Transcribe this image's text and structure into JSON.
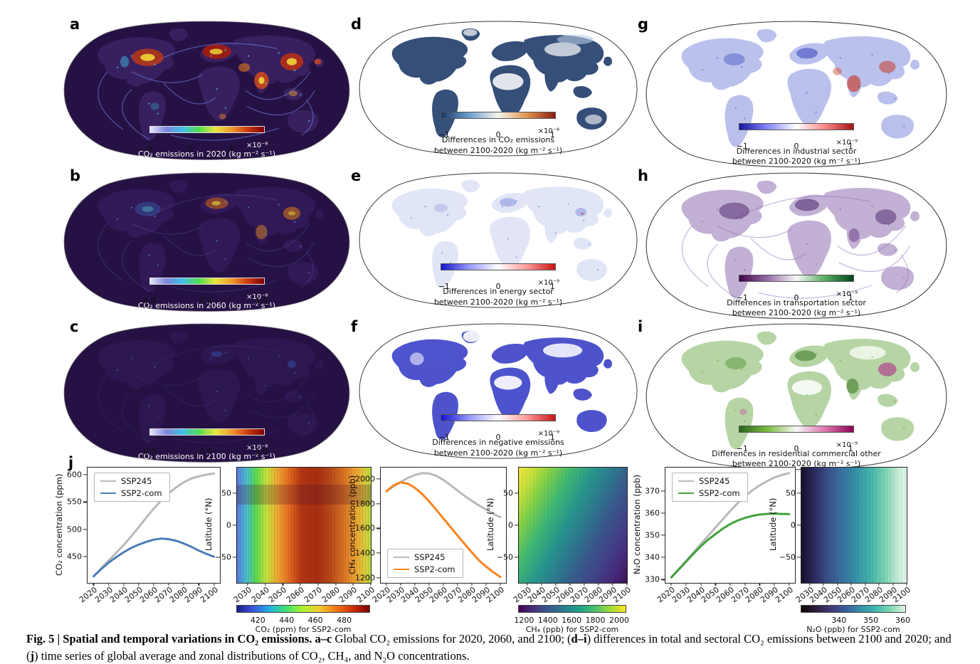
{
  "maps": [
    {
      "letter": "a",
      "label_lines": [
        "CO₂ emissions in 2020 (kg m⁻² s⁻¹)"
      ],
      "cbar": {
        "exp": "×10⁻⁸",
        "colors": [
          "#e6e6fa",
          "#7b86dc",
          "#40c0e8",
          "#52de50",
          "#e6e63c",
          "#f0992e",
          "#cc3a10",
          "#800000"
        ],
        "axis": {
          "xlim": [
            0,
            5.6
          ],
          "xticks": [
            {
              "v": 0,
              "t": "0"
            },
            {
              "v": 2,
              "t": "2"
            },
            {
              "v": 4,
              "t": "4"
            }
          ],
          "xrot": false
        }
      }
    },
    {
      "letter": "b",
      "label_lines": [
        "CO₂ emissions in 2060 (kg m⁻² s⁻¹)"
      ],
      "cbar": {
        "exp": "×10⁻⁸",
        "colors": [
          "#e6e6fa",
          "#7b86dc",
          "#40c0e8",
          "#52de50",
          "#e6e63c",
          "#f0992e",
          "#cc3a10",
          "#800000"
        ],
        "axis": {
          "xlim": [
            0,
            1.02
          ],
          "xticks": [
            {
              "v": 0,
              "t": "0.0"
            },
            {
              "v": 0.5,
              "t": "0.5"
            },
            {
              "v": 1,
              "t": "1.0"
            }
          ],
          "xrot": false
        }
      }
    },
    {
      "letter": "c",
      "label_lines": [
        "CO₂ emissions in 2100 (kg m⁻² s⁻¹)"
      ],
      "cbar": {
        "exp": "×10⁻⁸",
        "colors": [
          "#e6e6fa",
          "#7b86dc",
          "#40c0e8",
          "#52de50",
          "#e6e63c",
          "#f0992e",
          "#cc3a10",
          "#800000"
        ],
        "axis": {
          "xlim": [
            0,
            1.02
          ],
          "xticks": [
            {
              "v": 0,
              "t": "0.0"
            },
            {
              "v": 0.5,
              "t": "0.5"
            },
            {
              "v": 1,
              "t": "1.0"
            }
          ],
          "xrot": false
        }
      }
    },
    {
      "letter": "d",
      "label_lines": [
        "Differences in CO₂ emissions",
        "between 2100-2020 (kg m⁻² s⁻¹)"
      ],
      "cbar": {
        "exp": "×10⁻⁸",
        "colors": [
          "#173766",
          "#6ea3cf",
          "#f7f4ef",
          "#e0964e",
          "#8c1a10"
        ],
        "axis": {
          "xlim": [
            -1.05,
            1.05
          ],
          "xticks": [
            {
              "v": -1,
              "t": "−1"
            },
            {
              "v": 0,
              "t": "0"
            },
            {
              "v": 1,
              "t": "1"
            }
          ],
          "xrot": false
        }
      }
    },
    {
      "letter": "e",
      "label_lines": [
        "Differences in energy sector",
        "between 2100-2020 (kg m⁻² s⁻¹)"
      ],
      "cbar": {
        "exp": "×10⁻⁹",
        "colors": [
          "#1414c8",
          "#9a9aff",
          "#ffffff",
          "#ff9a9a",
          "#c81414"
        ],
        "axis": {
          "xlim": [
            -1.05,
            1.05
          ],
          "xticks": [
            {
              "v": -1,
              "t": "−1"
            },
            {
              "v": 0,
              "t": "0"
            },
            {
              "v": 1,
              "t": "1"
            }
          ],
          "xrot": false
        }
      }
    },
    {
      "letter": "f",
      "label_lines": [
        "Differences in negative emissions",
        "between 2100-2020 (kg m⁻² s⁻¹)"
      ],
      "cbar": {
        "exp": "×10⁻⁹",
        "colors": [
          "#1414c8",
          "#9a9aff",
          "#ffffff",
          "#ff9a9a",
          "#c81414"
        ],
        "axis": {
          "xlim": [
            -1.05,
            1.05
          ],
          "xticks": [
            {
              "v": -1,
              "t": "−1"
            },
            {
              "v": 0,
              "t": "0"
            },
            {
              "v": 1,
              "t": "1"
            }
          ],
          "xrot": false
        }
      }
    },
    {
      "letter": "g",
      "label_lines": [
        "Differences in industrial sector",
        "between 2100-2020 (kg m⁻² s⁻¹)"
      ],
      "cbar": {
        "exp": "×10⁻⁹",
        "colors": [
          "#1414a0",
          "#8888ff",
          "#ffffff",
          "#ff8888",
          "#a01414"
        ],
        "axis": {
          "xlim": [
            -1.05,
            1.05
          ],
          "xticks": [
            {
              "v": -1,
              "t": "−1"
            },
            {
              "v": 0,
              "t": "0"
            },
            {
              "v": 1,
              "t": "1"
            }
          ],
          "xrot": false
        }
      }
    },
    {
      "letter": "h",
      "label_lines": [
        "Differences in transportation sector",
        "between 2100-2020 (kg m⁻² s⁻¹)"
      ],
      "cbar": {
        "exp": "×10⁻⁹",
        "colors": [
          "#40004b",
          "#9970ab",
          "#f7f7f7",
          "#5aae61",
          "#00441b"
        ],
        "axis": {
          "xlim": [
            -1.05,
            1.05
          ],
          "xticks": [
            {
              "v": -1,
              "t": "−1"
            },
            {
              "v": 0,
              "t": "0"
            },
            {
              "v": 1,
              "t": "1"
            }
          ],
          "xrot": false
        }
      }
    },
    {
      "letter": "i",
      "label_lines": [
        "Differences in residential commercial other",
        "between 2100-2020 (kg m⁻² s⁻¹)"
      ],
      "cbar": {
        "exp": "×10⁻⁹",
        "colors": [
          "#276419",
          "#7fbc41",
          "#f7f7f7",
          "#de77ae",
          "#8e0152"
        ],
        "axis": {
          "xlim": [
            -1.05,
            1.05
          ],
          "xticks": [
            {
              "v": -1,
              "t": "−1"
            },
            {
              "v": 0,
              "t": "0"
            },
            {
              "v": 1,
              "t": "1"
            }
          ],
          "xrot": false
        }
      }
    }
  ],
  "panel_j": {
    "letter": "j",
    "co2_line": {
      "ylabel": "CO₂ concentration (ppm)",
      "xlim": [
        2016,
        2104
      ],
      "ylim": [
        402,
        613
      ],
      "yticks": [
        450,
        500,
        550,
        600
      ],
      "xticks": [
        2020,
        2030,
        2040,
        2050,
        2060,
        2070,
        2080,
        2090,
        2100
      ],
      "legend_pos": "tl",
      "series": [
        {
          "name": "SSP245",
          "color": "#b9b9b9",
          "x": [
            2020,
            2025,
            2030,
            2035,
            2040,
            2045,
            2050,
            2055,
            2060,
            2065,
            2070,
            2075,
            2080,
            2085,
            2090,
            2095,
            2100
          ],
          "y": [
            414,
            428,
            443,
            457,
            471,
            487,
            504,
            521,
            538,
            553,
            566,
            577,
            586,
            593,
            597,
            600,
            602
          ]
        },
        {
          "name": "SSP2-com",
          "color": "#4a7fb8",
          "x": [
            2020,
            2025,
            2030,
            2035,
            2040,
            2045,
            2050,
            2055,
            2060,
            2065,
            2070,
            2075,
            2080,
            2085,
            2090,
            2095,
            2100
          ],
          "y": [
            414,
            427,
            439,
            449,
            458,
            466,
            472,
            477,
            481,
            483,
            482,
            479,
            474,
            468,
            461,
            455,
            450
          ]
        }
      ]
    },
    "co2_map": {
      "ylabel": "Latitude (°N)",
      "axis": {
        "xlim": [
          2024,
          2100
        ],
        "ylim": [
          -90,
          90
        ],
        "xticks": [
          2030,
          2040,
          2050,
          2060,
          2070,
          2080,
          2090,
          2100
        ],
        "yticks": [
          {
            "v": 50,
            "t": "50"
          },
          {
            "v": 0,
            "t": "0"
          },
          {
            "v": -50,
            "t": "−50"
          }
        ]
      },
      "cbar_colors": [
        "#1c1c84",
        "#3a56e0",
        "#22b1e0",
        "#43e26d",
        "#aef22e",
        "#f2c82e",
        "#f07818",
        "#cc2d08",
        "#7a0403"
      ],
      "cbar_axis": {
        "xlim": [
          405,
          498
        ],
        "xticks": [
          420,
          440,
          460,
          480
        ],
        "xrot": false
      },
      "cbar_label": "CO₂ (ppm) for SSP2-com"
    },
    "ch4_line": {
      "ylabel": "CH₄ concentration (ppb)",
      "xlim": [
        2016,
        2104
      ],
      "ylim": [
        1158,
        2092
      ],
      "yticks": [
        1200,
        1400,
        1600,
        1800,
        2000
      ],
      "xticks": [
        2020,
        2030,
        2040,
        2050,
        2060,
        2070,
        2080,
        2090,
        2100
      ],
      "legend_pos": "bl",
      "series": [
        {
          "name": "SSP245",
          "color": "#b9b9b9",
          "x": [
            2020,
            2025,
            2030,
            2035,
            2040,
            2045,
            2050,
            2055,
            2060,
            2065,
            2070,
            2075,
            2080,
            2085,
            2090,
            2095,
            2100
          ],
          "y": [
            1900,
            1940,
            1975,
            2008,
            2032,
            2047,
            2045,
            2025,
            1992,
            1950,
            1905,
            1862,
            1822,
            1785,
            1752,
            1718,
            1690
          ]
        },
        {
          "name": "SSP2-com",
          "color": "#f5831e",
          "x": [
            2020,
            2025,
            2030,
            2035,
            2040,
            2045,
            2050,
            2055,
            2060,
            2065,
            2070,
            2075,
            2080,
            2085,
            2090,
            2095,
            2100
          ],
          "y": [
            1900,
            1948,
            1972,
            1962,
            1928,
            1878,
            1818,
            1750,
            1680,
            1610,
            1540,
            1472,
            1405,
            1340,
            1290,
            1245,
            1205
          ]
        }
      ]
    },
    "ch4_map": {
      "ylabel": "Latitude (°N)",
      "axis": {
        "xlim": [
          2024,
          2100
        ],
        "ylim": [
          -90,
          90
        ],
        "xticks": [
          2030,
          2040,
          2050,
          2060,
          2070,
          2080,
          2090,
          2100
        ],
        "yticks": [
          {
            "v": 50,
            "t": "50"
          },
          {
            "v": 0,
            "t": "0"
          },
          {
            "v": -50,
            "t": "−50"
          }
        ]
      },
      "cbar_colors": [
        "#440154",
        "#46327e",
        "#365c8d",
        "#277f8e",
        "#1fa187",
        "#4ac16d",
        "#a0da39",
        "#fde725"
      ],
      "cbar_axis": {
        "xlim": [
          1150,
          2060
        ],
        "xticks": [
          1200,
          1400,
          1600,
          1800,
          2000
        ],
        "xrot": false
      },
      "cbar_label": "CH₄ (ppb) for SSP2-com"
    },
    "n2o_line": {
      "ylabel": "N₂O concentration (ppb)",
      "xlim": [
        2016,
        2104
      ],
      "ylim": [
        328.5,
        380.5
      ],
      "yticks": [
        330,
        340,
        350,
        360,
        370
      ],
      "xticks": [
        2020,
        2030,
        2040,
        2050,
        2060,
        2070,
        2080,
        2090,
        2100
      ],
      "legend_pos": "tl",
      "series": [
        {
          "name": "SSP245",
          "color": "#b9b9b9",
          "x": [
            2020,
            2025,
            2030,
            2035,
            2040,
            2045,
            2050,
            2055,
            2060,
            2065,
            2070,
            2075,
            2080,
            2085,
            2090,
            2095,
            2100
          ],
          "y": [
            331,
            334.7,
            338.5,
            342.2,
            346,
            349.7,
            353.5,
            357.2,
            361,
            364.4,
            367.5,
            370.2,
            372.5,
            374.4,
            376,
            377.2,
            378
          ]
        },
        {
          "name": "SSP2-com",
          "color": "#41a33c",
          "x": [
            2020,
            2025,
            2030,
            2035,
            2040,
            2045,
            2050,
            2055,
            2060,
            2065,
            2070,
            2075,
            2080,
            2085,
            2090,
            2095,
            2100
          ],
          "y": [
            331,
            334.5,
            338,
            341.6,
            345,
            348,
            350.5,
            353,
            355,
            356.6,
            357.8,
            358.7,
            359.3,
            359.6,
            359.7,
            359.6,
            359.5
          ]
        }
      ]
    },
    "n2o_map": {
      "ylabel": "Latitude (°N)",
      "axis": {
        "xlim": [
          2024,
          2100
        ],
        "ylim": [
          -90,
          90
        ],
        "xticks": [
          2030,
          2040,
          2050,
          2060,
          2070,
          2080,
          2090,
          2100
        ],
        "yticks": [
          {
            "v": 50,
            "t": "50"
          },
          {
            "v": 0,
            "t": "0"
          },
          {
            "v": -50,
            "t": "−50"
          }
        ]
      },
      "cbar_colors": [
        "#0b0405",
        "#2d1e3e",
        "#3e3a76",
        "#395d9c",
        "#3490a8",
        "#3fb7ad",
        "#7fd8b4",
        "#def5e5"
      ],
      "cbar_axis": {
        "xlim": [
          328,
          361
        ],
        "xticks": [
          340,
          350,
          360
        ],
        "xrot": false
      },
      "cbar_label": "N₂O (ppb) for SSP2-com"
    }
  },
  "caption": {
    "seg1_bold": "Fig. 5 | Spatial and temporal variations in CO₂ emissions. a–c",
    "seg2": " Global CO₂ emissions for 2020, 2060, and 2100; (",
    "seg3_bold": "d–i",
    "seg4": ") differences in total and sectoral CO₂ emissions between 2100 and 2020; and (",
    "seg5_bold": "j",
    "seg6": ") time series of global average and zonal distributions of CO₂, CH₄, and N₂O concentrations."
  }
}
